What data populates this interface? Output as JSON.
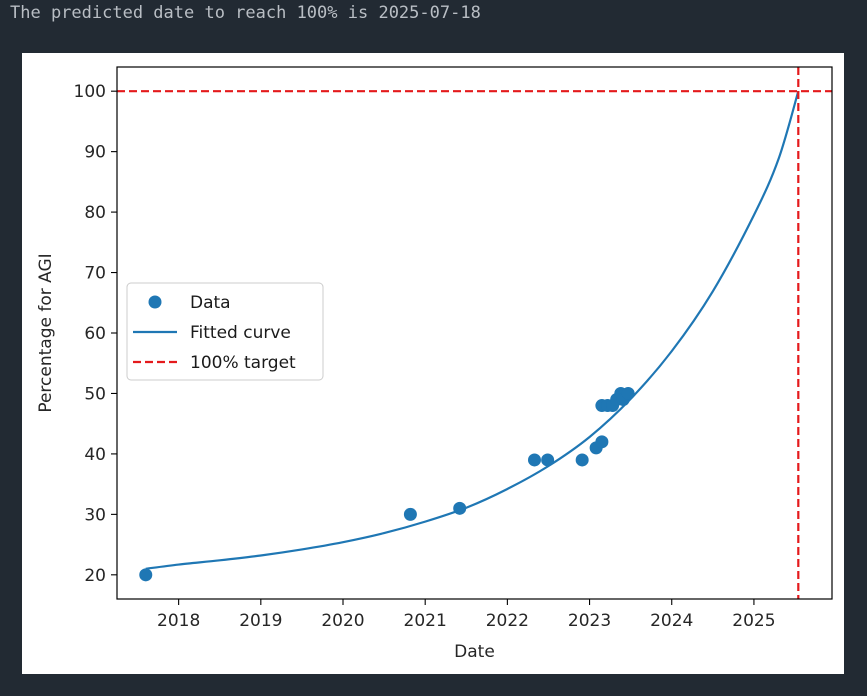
{
  "output": {
    "text": "The predicted date to reach 100% is 2025-07-18"
  },
  "colors": {
    "background": "#222a33",
    "series": "#1f77b4",
    "target": "#e41a1c"
  },
  "chart_data": {
    "type": "scatter",
    "xlabel": "Date",
    "ylabel": "Percentage for AGI",
    "xlim": [
      2017.25,
      2025.95
    ],
    "ylim": [
      16,
      104
    ],
    "xticks": [
      2018,
      2019,
      2020,
      2021,
      2022,
      2023,
      2024,
      2025
    ],
    "yticks": [
      20,
      30,
      40,
      50,
      60,
      70,
      80,
      90,
      100
    ],
    "legend": {
      "position": "center-left",
      "entries": [
        {
          "label": "Data",
          "kind": "marker"
        },
        {
          "label": "Fitted curve",
          "kind": "line"
        },
        {
          "label": "100% target",
          "kind": "dashed"
        }
      ]
    },
    "series": [
      {
        "name": "Data",
        "kind": "points",
        "x": [
          2017.6,
          2020.82,
          2021.42,
          2022.33,
          2022.49,
          2022.91,
          2023.08,
          2023.15,
          2023.15,
          2023.22,
          2023.28,
          2023.33,
          2023.38,
          2023.41,
          2023.47
        ],
        "y": [
          20,
          30,
          31,
          39,
          39,
          39,
          41,
          42,
          48,
          48,
          48,
          49,
          50,
          49,
          50
        ]
      },
      {
        "name": "Fitted curve",
        "kind": "line",
        "x": [
          2017.6,
          2018.0,
          2018.5,
          2019.0,
          2019.5,
          2020.0,
          2020.5,
          2021.0,
          2021.5,
          2022.0,
          2022.5,
          2023.0,
          2023.5,
          2024.0,
          2024.5,
          2025.0,
          2025.3,
          2025.54
        ],
        "y": [
          21.0,
          21.7,
          22.4,
          23.2,
          24.2,
          25.4,
          26.9,
          28.8,
          31.1,
          34.2,
          38.0,
          42.8,
          49.1,
          57.0,
          66.9,
          79.5,
          88.8,
          100
        ]
      },
      {
        "name": "100% target",
        "kind": "hline",
        "y": 100
      },
      {
        "name": "100% target date",
        "kind": "vline",
        "x": 2025.54
      }
    ]
  }
}
